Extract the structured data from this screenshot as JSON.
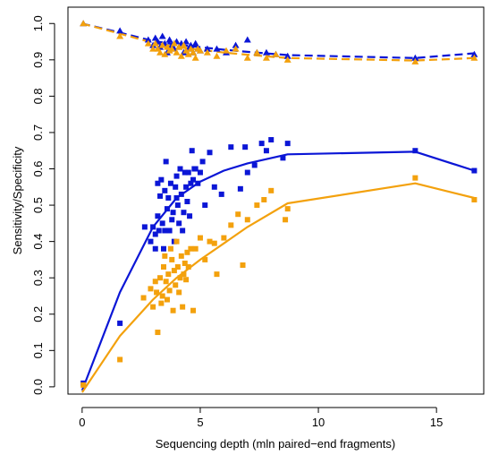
{
  "chart_data": {
    "type": "scatter",
    "title": "",
    "xlabel": "Sequencing depth (mln paired−end fragments)",
    "ylabel": "Sensitivity/Specificity",
    "xlim": [
      -0.6,
      17.0
    ],
    "ylim": [
      -0.02,
      1.045
    ],
    "x_ticks": [
      0,
      5,
      10,
      15
    ],
    "y_ticks": [
      0.0,
      0.1,
      0.2,
      0.3,
      0.4,
      0.5,
      0.6,
      0.7,
      0.8,
      0.9,
      1.0
    ],
    "x_tick_labels": [
      "0",
      "5",
      "10",
      "15"
    ],
    "y_tick_labels": [
      "0.0",
      "0.1",
      "0.2",
      "0.3",
      "0.4",
      "0.5",
      "0.6",
      "0.7",
      "0.8",
      "0.9",
      "1.0"
    ],
    "grid": false,
    "legend": "none",
    "colors": {
      "blue": "#0b16d6",
      "orange": "#f3a10d"
    },
    "series": [
      {
        "color": "blue",
        "kind": "curve",
        "dash": false,
        "x": [
          0.0,
          1.6,
          3.0,
          4.0,
          5.0,
          6.0,
          7.0,
          8.7,
          14.1,
          16.6
        ],
        "values": [
          -0.01,
          0.26,
          0.44,
          0.52,
          0.565,
          0.595,
          0.615,
          0.64,
          0.647,
          0.595
        ]
      },
      {
        "color": "orange",
        "kind": "curve",
        "dash": false,
        "x": [
          0.0,
          1.6,
          3.0,
          4.0,
          5.0,
          6.0,
          7.0,
          8.7,
          14.1,
          16.6
        ],
        "values": [
          -0.015,
          0.14,
          0.24,
          0.3,
          0.35,
          0.395,
          0.44,
          0.505,
          0.56,
          0.52
        ]
      },
      {
        "color": "blue",
        "kind": "curve",
        "dash": true,
        "x": [
          0.0,
          1.6,
          3.0,
          4.0,
          5.0,
          6.0,
          7.0,
          8.7,
          14.1,
          16.6
        ],
        "values": [
          1.0,
          0.975,
          0.952,
          0.942,
          0.935,
          0.928,
          0.922,
          0.913,
          0.905,
          0.918
        ]
      },
      {
        "color": "orange",
        "kind": "curve",
        "dash": true,
        "x": [
          0.0,
          1.6,
          3.0,
          4.0,
          5.0,
          6.0,
          7.0,
          8.7,
          14.1,
          16.6
        ],
        "values": [
          1.0,
          0.972,
          0.947,
          0.935,
          0.928,
          0.92,
          0.914,
          0.905,
          0.898,
          0.905
        ]
      },
      {
        "color": "blue",
        "kind": "points",
        "marker": "square",
        "x": [
          0.05,
          1.6,
          2.65,
          2.9,
          3.0,
          3.1,
          3.1,
          3.2,
          3.2,
          3.25,
          3.3,
          3.35,
          3.4,
          3.45,
          3.5,
          3.5,
          3.55,
          3.6,
          3.65,
          3.7,
          3.75,
          3.8,
          3.85,
          3.9,
          3.95,
          4.0,
          4.0,
          4.05,
          4.1,
          4.15,
          4.2,
          4.25,
          4.3,
          4.35,
          4.4,
          4.45,
          4.5,
          4.55,
          4.6,
          4.65,
          4.7,
          4.75,
          4.8,
          4.9,
          5.0,
          5.1,
          5.2,
          5.4,
          5.6,
          5.9,
          6.3,
          6.7,
          6.9,
          7.0,
          7.3,
          7.6,
          7.8,
          8.0,
          8.5,
          8.7,
          14.1,
          16.6
        ],
        "values": [
          0.01,
          0.175,
          0.44,
          0.4,
          0.44,
          0.42,
          0.38,
          0.47,
          0.56,
          0.43,
          0.525,
          0.57,
          0.45,
          0.38,
          0.43,
          0.54,
          0.62,
          0.49,
          0.52,
          0.43,
          0.56,
          0.46,
          0.48,
          0.4,
          0.55,
          0.52,
          0.58,
          0.5,
          0.45,
          0.6,
          0.53,
          0.43,
          0.48,
          0.59,
          0.55,
          0.51,
          0.59,
          0.47,
          0.56,
          0.65,
          0.57,
          0.6,
          0.6,
          0.56,
          0.59,
          0.62,
          0.5,
          0.645,
          0.55,
          0.53,
          0.66,
          0.545,
          0.66,
          0.59,
          0.61,
          0.67,
          0.65,
          0.68,
          0.63,
          0.67,
          0.65,
          0.595
        ]
      },
      {
        "color": "orange",
        "kind": "points",
        "marker": "square",
        "x": [
          0.05,
          1.6,
          2.6,
          2.9,
          3.0,
          3.1,
          3.15,
          3.2,
          3.3,
          3.35,
          3.4,
          3.45,
          3.5,
          3.55,
          3.6,
          3.65,
          3.7,
          3.75,
          3.8,
          3.85,
          3.9,
          3.95,
          4.0,
          4.05,
          4.1,
          4.15,
          4.2,
          4.25,
          4.3,
          4.35,
          4.4,
          4.45,
          4.5,
          4.6,
          4.7,
          4.8,
          5.0,
          5.2,
          5.4,
          5.6,
          5.7,
          6.0,
          6.3,
          6.6,
          6.8,
          7.0,
          7.4,
          7.7,
          8.0,
          8.6,
          8.7,
          14.1,
          16.6
        ],
        "values": [
          0.005,
          0.075,
          0.245,
          0.27,
          0.22,
          0.29,
          0.26,
          0.15,
          0.3,
          0.23,
          0.25,
          0.33,
          0.36,
          0.29,
          0.24,
          0.31,
          0.265,
          0.38,
          0.35,
          0.21,
          0.32,
          0.28,
          0.4,
          0.33,
          0.26,
          0.3,
          0.36,
          0.22,
          0.31,
          0.34,
          0.295,
          0.37,
          0.33,
          0.38,
          0.21,
          0.38,
          0.41,
          0.35,
          0.4,
          0.395,
          0.31,
          0.41,
          0.445,
          0.475,
          0.335,
          0.46,
          0.5,
          0.515,
          0.54,
          0.46,
          0.49,
          0.575,
          0.515
        ]
      },
      {
        "color": "blue",
        "kind": "points",
        "marker": "triangle",
        "x": [
          0.05,
          1.6,
          2.8,
          3.0,
          3.1,
          3.2,
          3.3,
          3.4,
          3.5,
          3.6,
          3.7,
          3.8,
          3.9,
          4.0,
          4.1,
          4.2,
          4.3,
          4.4,
          4.5,
          4.6,
          4.7,
          4.8,
          4.9,
          5.0,
          5.3,
          5.7,
          6.1,
          6.5,
          7.0,
          7.4,
          7.8,
          8.2,
          8.7,
          14.1,
          16.6
        ],
        "values": [
          1.0,
          0.98,
          0.955,
          0.94,
          0.96,
          0.95,
          0.935,
          0.965,
          0.945,
          0.92,
          0.955,
          0.94,
          0.93,
          0.95,
          0.935,
          0.945,
          0.92,
          0.95,
          0.93,
          0.94,
          0.92,
          0.945,
          0.93,
          0.925,
          0.93,
          0.93,
          0.92,
          0.94,
          0.955,
          0.92,
          0.92,
          0.915,
          0.91,
          0.905,
          0.915
        ]
      },
      {
        "color": "orange",
        "kind": "points",
        "marker": "triangle",
        "x": [
          0.05,
          1.6,
          2.8,
          3.0,
          3.1,
          3.2,
          3.3,
          3.4,
          3.5,
          3.6,
          3.7,
          3.8,
          3.9,
          4.0,
          4.1,
          4.2,
          4.3,
          4.4,
          4.5,
          4.6,
          4.7,
          4.8,
          4.9,
          5.0,
          5.3,
          5.7,
          6.1,
          6.5,
          7.0,
          7.4,
          7.8,
          8.2,
          8.7,
          14.1,
          16.6
        ],
        "values": [
          1.0,
          0.965,
          0.945,
          0.93,
          0.945,
          0.93,
          0.92,
          0.94,
          0.915,
          0.935,
          0.925,
          0.93,
          0.945,
          0.92,
          0.935,
          0.91,
          0.94,
          0.925,
          0.915,
          0.93,
          0.92,
          0.905,
          0.93,
          0.925,
          0.92,
          0.91,
          0.925,
          0.93,
          0.905,
          0.92,
          0.905,
          0.915,
          0.9,
          0.895,
          0.905
        ]
      }
    ]
  }
}
